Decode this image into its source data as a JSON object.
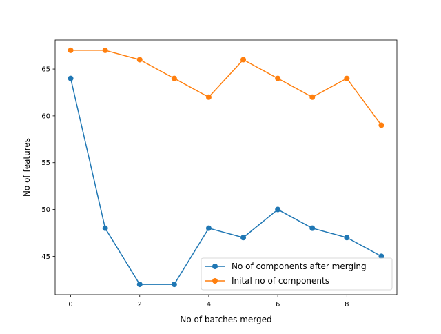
{
  "chart_data": {
    "type": "line",
    "xlabel": "No of batches merged",
    "ylabel": "No of features",
    "xlim": [
      -0.45,
      9.45
    ],
    "ylim": [
      40.9,
      68.1
    ],
    "xticks": [
      0,
      2,
      4,
      6,
      8
    ],
    "yticks": [
      45,
      50,
      55,
      60,
      65
    ],
    "grid": false,
    "legend_position": "lower right",
    "x": [
      0,
      1,
      2,
      3,
      4,
      5,
      6,
      7,
      8,
      9
    ],
    "series": [
      {
        "name": "No of components after merging",
        "color": "#1f77b4",
        "values": [
          64,
          48,
          42,
          42,
          48,
          47,
          50,
          48,
          47,
          45
        ]
      },
      {
        "name": "Inital no of components",
        "color": "#ff7f0e",
        "values": [
          67,
          67,
          66,
          64,
          62,
          66,
          64,
          62,
          64,
          59
        ]
      }
    ]
  }
}
